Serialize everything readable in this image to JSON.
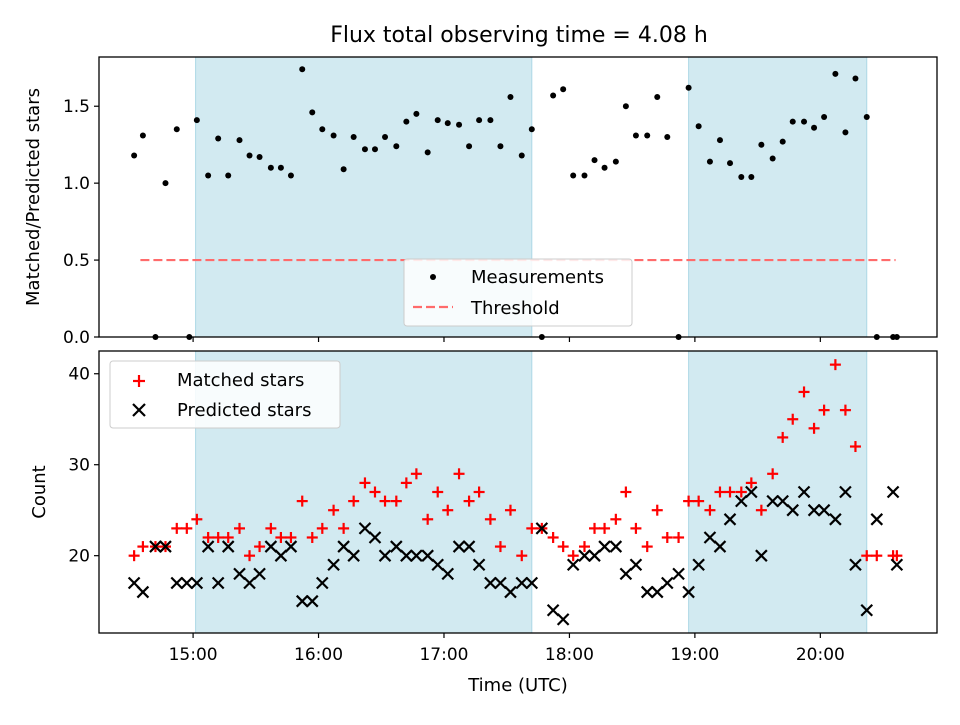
{
  "chart_data": [
    {
      "type": "scatter",
      "title": "Flux total observing time = 4.08 h",
      "ylabel": "Matched/Predicted stars",
      "xlim": [
        14.25,
        20.93
      ],
      "ylim": [
        0,
        1.82
      ],
      "yticks": [
        "0.0",
        "0.5",
        "1.0",
        "1.5"
      ],
      "grid": false,
      "legend_position": "lower center",
      "shaded_ranges_hours": [
        [
          15.02,
          17.7
        ],
        [
          18.95,
          20.37
        ]
      ],
      "shade_color": "#add8e6",
      "threshold": {
        "name": "Threshold",
        "value": 0.5,
        "x_range": [
          14.58,
          20.6
        ],
        "color": "#ff6b6b",
        "style": "dashed"
      },
      "series": [
        {
          "name": "Measurements",
          "marker": "dot",
          "color": "#000000",
          "points": [
            [
              14.53,
              1.18
            ],
            [
              14.6,
              1.31
            ],
            [
              14.7,
              0.0
            ],
            [
              14.78,
              1.0
            ],
            [
              14.87,
              1.35
            ],
            [
              14.97,
              0.0
            ],
            [
              15.03,
              1.41
            ],
            [
              15.12,
              1.05
            ],
            [
              15.2,
              1.29
            ],
            [
              15.28,
              1.05
            ],
            [
              15.37,
              1.28
            ],
            [
              15.45,
              1.18
            ],
            [
              15.53,
              1.17
            ],
            [
              15.62,
              1.1
            ],
            [
              15.7,
              1.1
            ],
            [
              15.78,
              1.05
            ],
            [
              15.87,
              1.74
            ],
            [
              15.95,
              1.46
            ],
            [
              16.03,
              1.35
            ],
            [
              16.12,
              1.31
            ],
            [
              16.2,
              1.09
            ],
            [
              16.28,
              1.3
            ],
            [
              16.37,
              1.22
            ],
            [
              16.45,
              1.22
            ],
            [
              16.53,
              1.3
            ],
            [
              16.62,
              1.24
            ],
            [
              16.7,
              1.4
            ],
            [
              16.78,
              1.45
            ],
            [
              16.87,
              1.2
            ],
            [
              16.95,
              1.41
            ],
            [
              17.03,
              1.39
            ],
            [
              17.12,
              1.38
            ],
            [
              17.2,
              1.24
            ],
            [
              17.28,
              1.41
            ],
            [
              17.37,
              1.41
            ],
            [
              17.45,
              1.24
            ],
            [
              17.53,
              1.56
            ],
            [
              17.62,
              1.18
            ],
            [
              17.7,
              1.35
            ],
            [
              17.78,
              0.0
            ],
            [
              17.87,
              1.57
            ],
            [
              17.95,
              1.61
            ],
            [
              18.03,
              1.05
            ],
            [
              18.12,
              1.05
            ],
            [
              18.2,
              1.15
            ],
            [
              18.28,
              1.1
            ],
            [
              18.37,
              1.14
            ],
            [
              18.45,
              1.5
            ],
            [
              18.53,
              1.31
            ],
            [
              18.62,
              1.31
            ],
            [
              18.7,
              1.56
            ],
            [
              18.78,
              1.3
            ],
            [
              18.87,
              0.0
            ],
            [
              18.95,
              1.62
            ],
            [
              19.03,
              1.37
            ],
            [
              19.12,
              1.14
            ],
            [
              19.2,
              1.28
            ],
            [
              19.28,
              1.13
            ],
            [
              19.37,
              1.04
            ],
            [
              19.45,
              1.04
            ],
            [
              19.53,
              1.25
            ],
            [
              19.62,
              1.16
            ],
            [
              19.7,
              1.27
            ],
            [
              19.78,
              1.4
            ],
            [
              19.87,
              1.4
            ],
            [
              19.95,
              1.36
            ],
            [
              20.03,
              1.43
            ],
            [
              20.12,
              1.71
            ],
            [
              20.2,
              1.33
            ],
            [
              20.28,
              1.68
            ],
            [
              20.37,
              1.43
            ],
            [
              20.45,
              0.0
            ],
            [
              20.58,
              0.0
            ],
            [
              20.61,
              0.0
            ]
          ]
        }
      ]
    },
    {
      "type": "scatter",
      "xlabel": "Time (UTC)",
      "ylabel": "Count",
      "xlim": [
        14.25,
        20.93
      ],
      "ylim": [
        11.5,
        42.5
      ],
      "xticks": [
        "15:00",
        "16:00",
        "17:00",
        "18:00",
        "19:00",
        "20:00"
      ],
      "yticks": [
        "20",
        "30",
        "40"
      ],
      "grid": false,
      "legend_position": "upper left",
      "shaded_ranges_hours": [
        [
          15.02,
          17.7
        ],
        [
          18.95,
          20.37
        ]
      ],
      "shade_color": "#add8e6",
      "x_hours": [
        14.53,
        14.6,
        14.7,
        14.78,
        14.87,
        14.95,
        15.03,
        15.12,
        15.2,
        15.28,
        15.37,
        15.45,
        15.53,
        15.62,
        15.7,
        15.78,
        15.87,
        15.95,
        16.03,
        16.12,
        16.2,
        16.28,
        16.37,
        16.45,
        16.53,
        16.62,
        16.7,
        16.78,
        16.87,
        16.95,
        17.03,
        17.12,
        17.2,
        17.28,
        17.37,
        17.45,
        17.53,
        17.62,
        17.7,
        17.78,
        17.87,
        17.95,
        18.03,
        18.12,
        18.2,
        18.28,
        18.37,
        18.45,
        18.53,
        18.62,
        18.7,
        18.78,
        18.87,
        18.95,
        19.03,
        19.12,
        19.2,
        19.28,
        19.37,
        19.45,
        19.53,
        19.62,
        19.7,
        19.78,
        19.87,
        19.95,
        20.03,
        20.12,
        20.2,
        20.28,
        20.37,
        20.45,
        20.58,
        20.61
      ],
      "series": [
        {
          "name": "Matched stars",
          "marker": "plus",
          "color": "#ff0000",
          "values": [
            20,
            21,
            21,
            21,
            23,
            23,
            24,
            22,
            22,
            22,
            23,
            20,
            21,
            23,
            22,
            22,
            26,
            22,
            23,
            25,
            23,
            26,
            28,
            27,
            26,
            26,
            28,
            29,
            24,
            27,
            25,
            29,
            26,
            27,
            24,
            21,
            25,
            20,
            23,
            23,
            22,
            21,
            20,
            21,
            23,
            23,
            24,
            27,
            23,
            21,
            25,
            22,
            22,
            26,
            26,
            25,
            27,
            27,
            27,
            28,
            25,
            29,
            33,
            35,
            38,
            34,
            36,
            41,
            36,
            32,
            20,
            20,
            20,
            20
          ]
        },
        {
          "name": "Predicted stars",
          "marker": "x",
          "color": "#000000",
          "values": [
            17,
            16,
            21,
            21,
            17,
            17,
            17,
            21,
            17,
            21,
            18,
            17,
            18,
            21,
            20,
            21,
            15,
            15,
            17,
            19,
            21,
            20,
            23,
            22,
            20,
            21,
            20,
            20,
            20,
            19,
            18,
            21,
            21,
            19,
            17,
            17,
            16,
            17,
            17,
            23,
            14,
            13,
            19,
            20,
            20,
            21,
            21,
            18,
            19,
            16,
            16,
            17,
            18,
            16,
            19,
            22,
            21,
            24,
            26,
            27,
            20,
            26,
            26,
            25,
            27,
            25,
            25,
            24,
            27,
            19,
            14,
            24,
            27,
            19
          ]
        }
      ]
    }
  ]
}
